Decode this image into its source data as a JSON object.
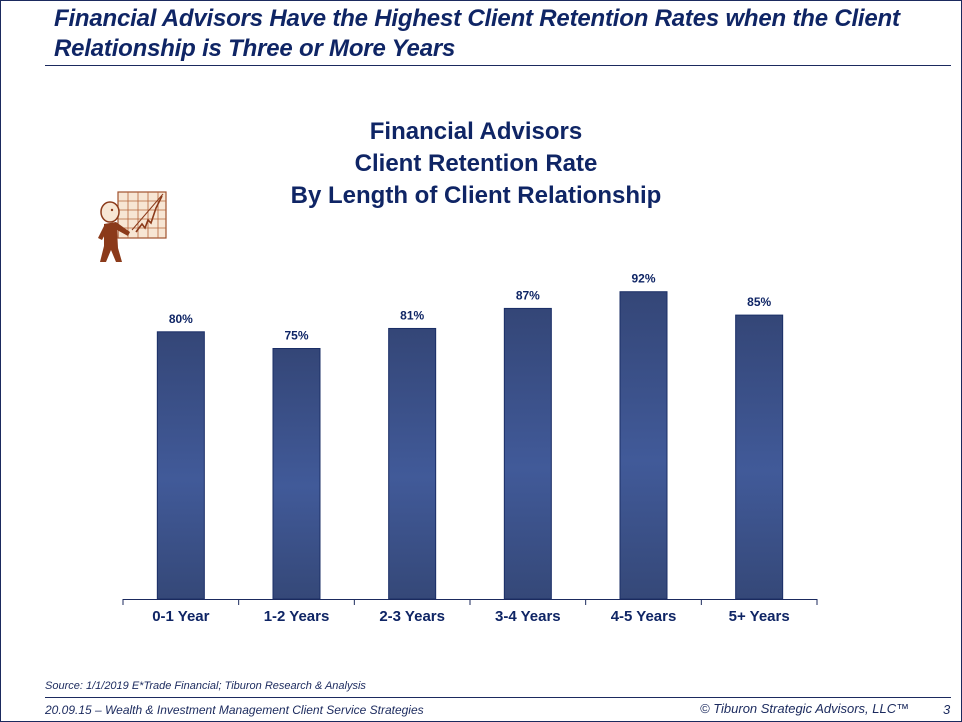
{
  "slide": {
    "title": "Financial Advisors Have the Highest Client Retention Rates when the Client Relationship is Three or More Years",
    "clipart_icon": "presenter-chart-clipart-icon",
    "source": "Source:   1/1/2019 E*Trade Financial; Tiburon Research & Analysis",
    "footer_left": "20.09.15 – Wealth & Investment Management Client Service Strategies",
    "footer_right": "© Tiburon Strategic Advisors, LLC™",
    "page_number": "3"
  },
  "colors": {
    "title": "#0f2565",
    "bar_top": "#344677",
    "bar_mid": "#415a99",
    "bar_bottom": "#354878",
    "bar_border": "#1a2e66",
    "axis": "#1b2a5e"
  },
  "chart_data": {
    "type": "bar",
    "title_lines": [
      "Financial Advisors",
      "Client Retention Rate",
      "By Length of Client Relationship"
    ],
    "categories": [
      "0-1 Year",
      "1-2 Years",
      "2-3 Years",
      "3-4 Years",
      "4-5 Years",
      "5+ Years"
    ],
    "values": [
      80,
      75,
      81,
      87,
      92,
      85
    ],
    "data_labels": [
      "80%",
      "75%",
      "81%",
      "87%",
      "92%",
      "85%"
    ],
    "xlabel": "",
    "ylabel": "",
    "ylim": [
      0,
      100
    ],
    "unit": "%",
    "grid": false,
    "legend": "none"
  }
}
